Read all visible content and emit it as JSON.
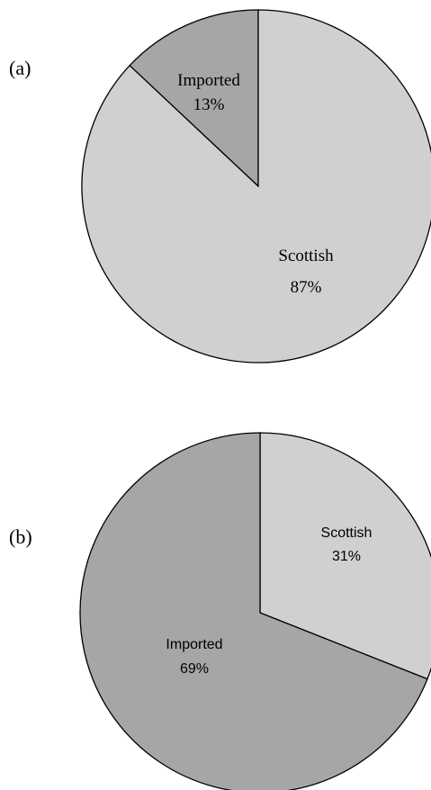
{
  "chart_data": [
    {
      "type": "pie",
      "panel_label": "(a)",
      "slices": [
        {
          "name": "Imported",
          "pct_label": "13%",
          "value": 13,
          "color": "#a6a6a6"
        },
        {
          "name": "Scottish",
          "pct_label": "87%",
          "value": 87,
          "color": "#d0d0d0"
        }
      ]
    },
    {
      "type": "pie",
      "panel_label": "(b)",
      "slices": [
        {
          "name": "Scottish",
          "pct_label": "31%",
          "value": 31,
          "color": "#d0d0d0"
        },
        {
          "name": "Imported",
          "pct_label": "69%",
          "value": 69,
          "color": "#a6a6a6"
        }
      ]
    }
  ],
  "colors": {
    "stroke": "#000000"
  }
}
